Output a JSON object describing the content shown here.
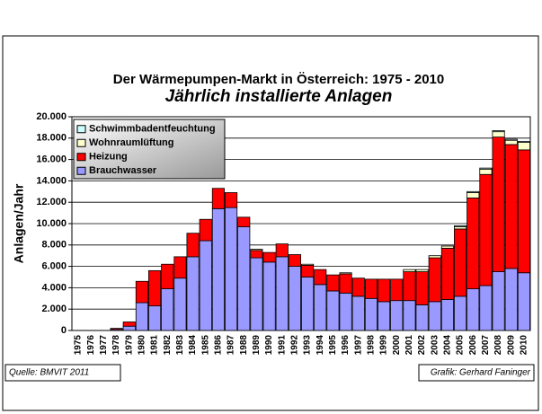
{
  "chart_data": {
    "type": "stacked_bar",
    "title": "Der Wärmepumpen-Markt in Österreich: 1975 - 2010",
    "subtitle": "Jährlich installierte Anlagen",
    "y_label": "Anlagen/Jahr",
    "source": "Quelle: BMVIT 2011",
    "credit": "Grafik: Gerhard Faninger",
    "categories": [
      "1975",
      "1976",
      "1977",
      "1978",
      "1979",
      "1980",
      "1981",
      "1982",
      "1983",
      "1984",
      "1985",
      "1986",
      "1987",
      "1988",
      "1989",
      "1990",
      "1991",
      "1992",
      "1993",
      "1994",
      "1995",
      "1996",
      "1997",
      "1998",
      "1999",
      "2000",
      "2001",
      "2002",
      "2003",
      "2004",
      "2005",
      "2006",
      "2007",
      "2008",
      "2009",
      "2010"
    ],
    "series": [
      {
        "name": "Brauchwasser",
        "color": "#9999ff",
        "values": [
          0,
          0,
          0,
          100,
          400,
          2600,
          2300,
          3900,
          4900,
          6900,
          8400,
          11400,
          11500,
          9700,
          6800,
          6400,
          6900,
          6000,
          5000,
          4300,
          3700,
          3500,
          3200,
          3000,
          2700,
          2800,
          2800,
          2400,
          2700,
          2900,
          3200,
          3900,
          4200,
          5500,
          5800,
          5400
        ]
      },
      {
        "name": "Heizung",
        "color": "#ff0000",
        "values": [
          0,
          0,
          0,
          100,
          400,
          2000,
          3300,
          2300,
          2000,
          2200,
          2000,
          1900,
          1400,
          900,
          700,
          900,
          1200,
          1100,
          1100,
          1400,
          1500,
          1800,
          1700,
          1800,
          2100,
          2000,
          2700,
          3100,
          4100,
          4800,
          6300,
          8500,
          10400,
          12600,
          11600,
          11500
        ]
      },
      {
        "name": "Wohnraumlüftung",
        "color": "#ffffcc",
        "values": [
          0,
          0,
          0,
          0,
          0,
          0,
          0,
          0,
          0,
          0,
          0,
          0,
          0,
          0,
          100,
          0,
          0,
          0,
          100,
          0,
          0,
          100,
          0,
          0,
          0,
          0,
          200,
          200,
          200,
          200,
          200,
          500,
          500,
          500,
          400,
          700
        ]
      },
      {
        "name": "Schwimmbadentfeuchtung",
        "color": "#ccffff",
        "values": [
          0,
          0,
          0,
          0,
          0,
          0,
          0,
          0,
          0,
          0,
          0,
          0,
          0,
          0,
          0,
          0,
          0,
          0,
          0,
          0,
          0,
          0,
          0,
          0,
          0,
          0,
          0,
          0,
          0,
          0,
          100,
          100,
          100,
          100,
          100,
          100
        ]
      }
    ],
    "ylim": [
      0,
      20000
    ],
    "yticks": [
      0,
      {
        "value": 2000,
        "label": "2.000"
      },
      {
        "value": 4000,
        "label": "4.000"
      },
      {
        "value": 6000,
        "label": "6.000"
      },
      {
        "value": 8000,
        "label": "8.000"
      },
      {
        "value": 10000,
        "label": "10.000"
      },
      {
        "value": 12000,
        "label": "12.000"
      },
      {
        "value": 14000,
        "label": "14.000"
      },
      {
        "value": 16000,
        "label": "16.000"
      },
      {
        "value": 18000,
        "label": "18.000"
      },
      {
        "value": 20000,
        "label": "20.000"
      }
    ],
    "grid": true,
    "legend": "upper left"
  }
}
